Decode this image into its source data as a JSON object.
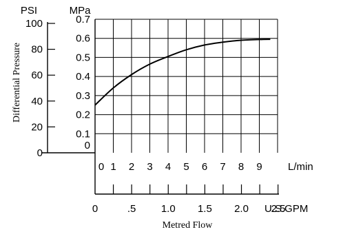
{
  "chart_data": {
    "type": "line",
    "x_label": "L/min",
    "x_ticks": [
      "0",
      "1",
      "2",
      "3",
      "4",
      "5",
      "6",
      "7",
      "8",
      "9"
    ],
    "xlim": [
      0,
      10
    ],
    "secondary_x_label": "U.S.GPM",
    "secondary_x_ticks": [
      "0",
      ".5",
      "1.0",
      "1.5",
      "2.0",
      "2.5"
    ],
    "y_left_label": "PSI",
    "y_left_ticks": [
      "100",
      "80",
      "60",
      "40",
      "20",
      "0"
    ],
    "y_right_label": "MPa",
    "y_right_ticks": [
      "0.7",
      "0.6",
      "0.5",
      "0.4",
      "0.3",
      "0.2",
      "0.1",
      "0"
    ],
    "ylim_mpa": [
      0,
      0.7
    ],
    "ylabel": "Differential Pressure",
    "xlabel": "Metred Flow",
    "grid": true,
    "series": [
      {
        "x": [
          0,
          1,
          2,
          3,
          4,
          5,
          6,
          7,
          8,
          9,
          9.6
        ],
        "y": [
          0.25,
          0.34,
          0.41,
          0.465,
          0.505,
          0.54,
          0.565,
          0.58,
          0.59,
          0.594,
          0.595
        ]
      }
    ]
  }
}
